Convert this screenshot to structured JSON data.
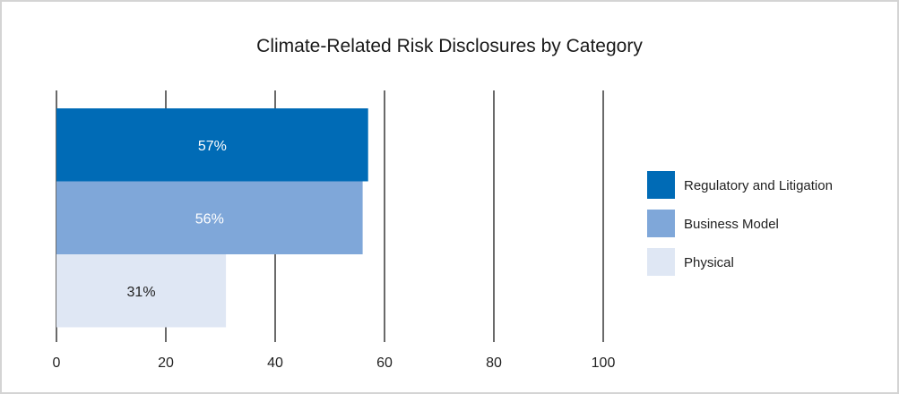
{
  "chart_data": {
    "type": "bar",
    "orientation": "horizontal",
    "title": "Climate-Related Risk Disclosures by Category",
    "xlim": [
      0,
      100
    ],
    "xticks": [
      0,
      20,
      40,
      60,
      80,
      100
    ],
    "grid": true,
    "legend_position": "right",
    "categories": [
      "Regulatory and Litigation",
      "Business Model",
      "Physical"
    ],
    "values": [
      57,
      56,
      31
    ],
    "labels": [
      "57%",
      "56%",
      "31%"
    ],
    "colors": [
      "#006bb6",
      "#7fa7d9",
      "#dfe7f4"
    ],
    "label_colors": [
      "#ffffff",
      "#ffffff",
      "#222222"
    ]
  }
}
